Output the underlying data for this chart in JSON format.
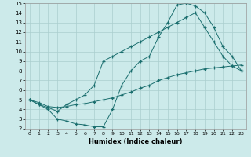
{
  "background_color": "#cceaea",
  "grid_color": "#aacece",
  "line_color": "#1a6e6e",
  "xlabel": "Humidex (Indice chaleur)",
  "xlim": [
    -0.5,
    23.5
  ],
  "ylim": [
    2,
    15
  ],
  "xticks": [
    0,
    1,
    2,
    3,
    4,
    5,
    6,
    7,
    8,
    9,
    10,
    11,
    12,
    13,
    14,
    15,
    16,
    17,
    18,
    19,
    20,
    21,
    22,
    23
  ],
  "yticks": [
    2,
    3,
    4,
    5,
    6,
    7,
    8,
    9,
    10,
    11,
    12,
    13,
    14,
    15
  ],
  "line1_x": [
    0,
    1,
    2,
    3,
    4,
    5,
    6,
    7,
    8,
    9,
    10,
    11,
    12,
    13,
    14,
    15,
    16,
    17,
    18,
    19,
    20,
    21,
    22,
    23
  ],
  "line1_y": [
    5,
    4.5,
    4,
    3,
    2.8,
    2.5,
    2.4,
    2.2,
    2.2,
    4,
    6.5,
    8,
    9,
    9.5,
    11.5,
    13,
    14.8,
    15,
    14.7,
    14,
    12.5,
    10.5,
    9.5,
    8
  ],
  "line2_x": [
    0,
    1,
    2,
    3,
    4,
    5,
    6,
    7,
    8,
    9,
    10,
    11,
    12,
    13,
    14,
    15,
    16,
    17,
    18,
    19,
    20,
    21,
    22,
    23
  ],
  "line2_y": [
    5,
    4.5,
    4.2,
    3.8,
    4.5,
    5.0,
    5.5,
    6.5,
    9,
    9.5,
    10,
    10.5,
    11,
    11.5,
    12,
    12.5,
    13,
    13.5,
    14.0,
    12.5,
    11,
    9.5,
    8.5,
    8
  ],
  "line3_x": [
    0,
    1,
    2,
    3,
    4,
    5,
    6,
    7,
    8,
    9,
    10,
    11,
    12,
    13,
    14,
    15,
    16,
    17,
    18,
    19,
    20,
    21,
    22,
    23
  ],
  "line3_y": [
    5,
    4.7,
    4.3,
    4.2,
    4.3,
    4.5,
    4.6,
    4.8,
    5.0,
    5.2,
    5.5,
    5.8,
    6.2,
    6.5,
    7.0,
    7.3,
    7.6,
    7.8,
    8.0,
    8.2,
    8.3,
    8.4,
    8.5,
    8.6
  ]
}
